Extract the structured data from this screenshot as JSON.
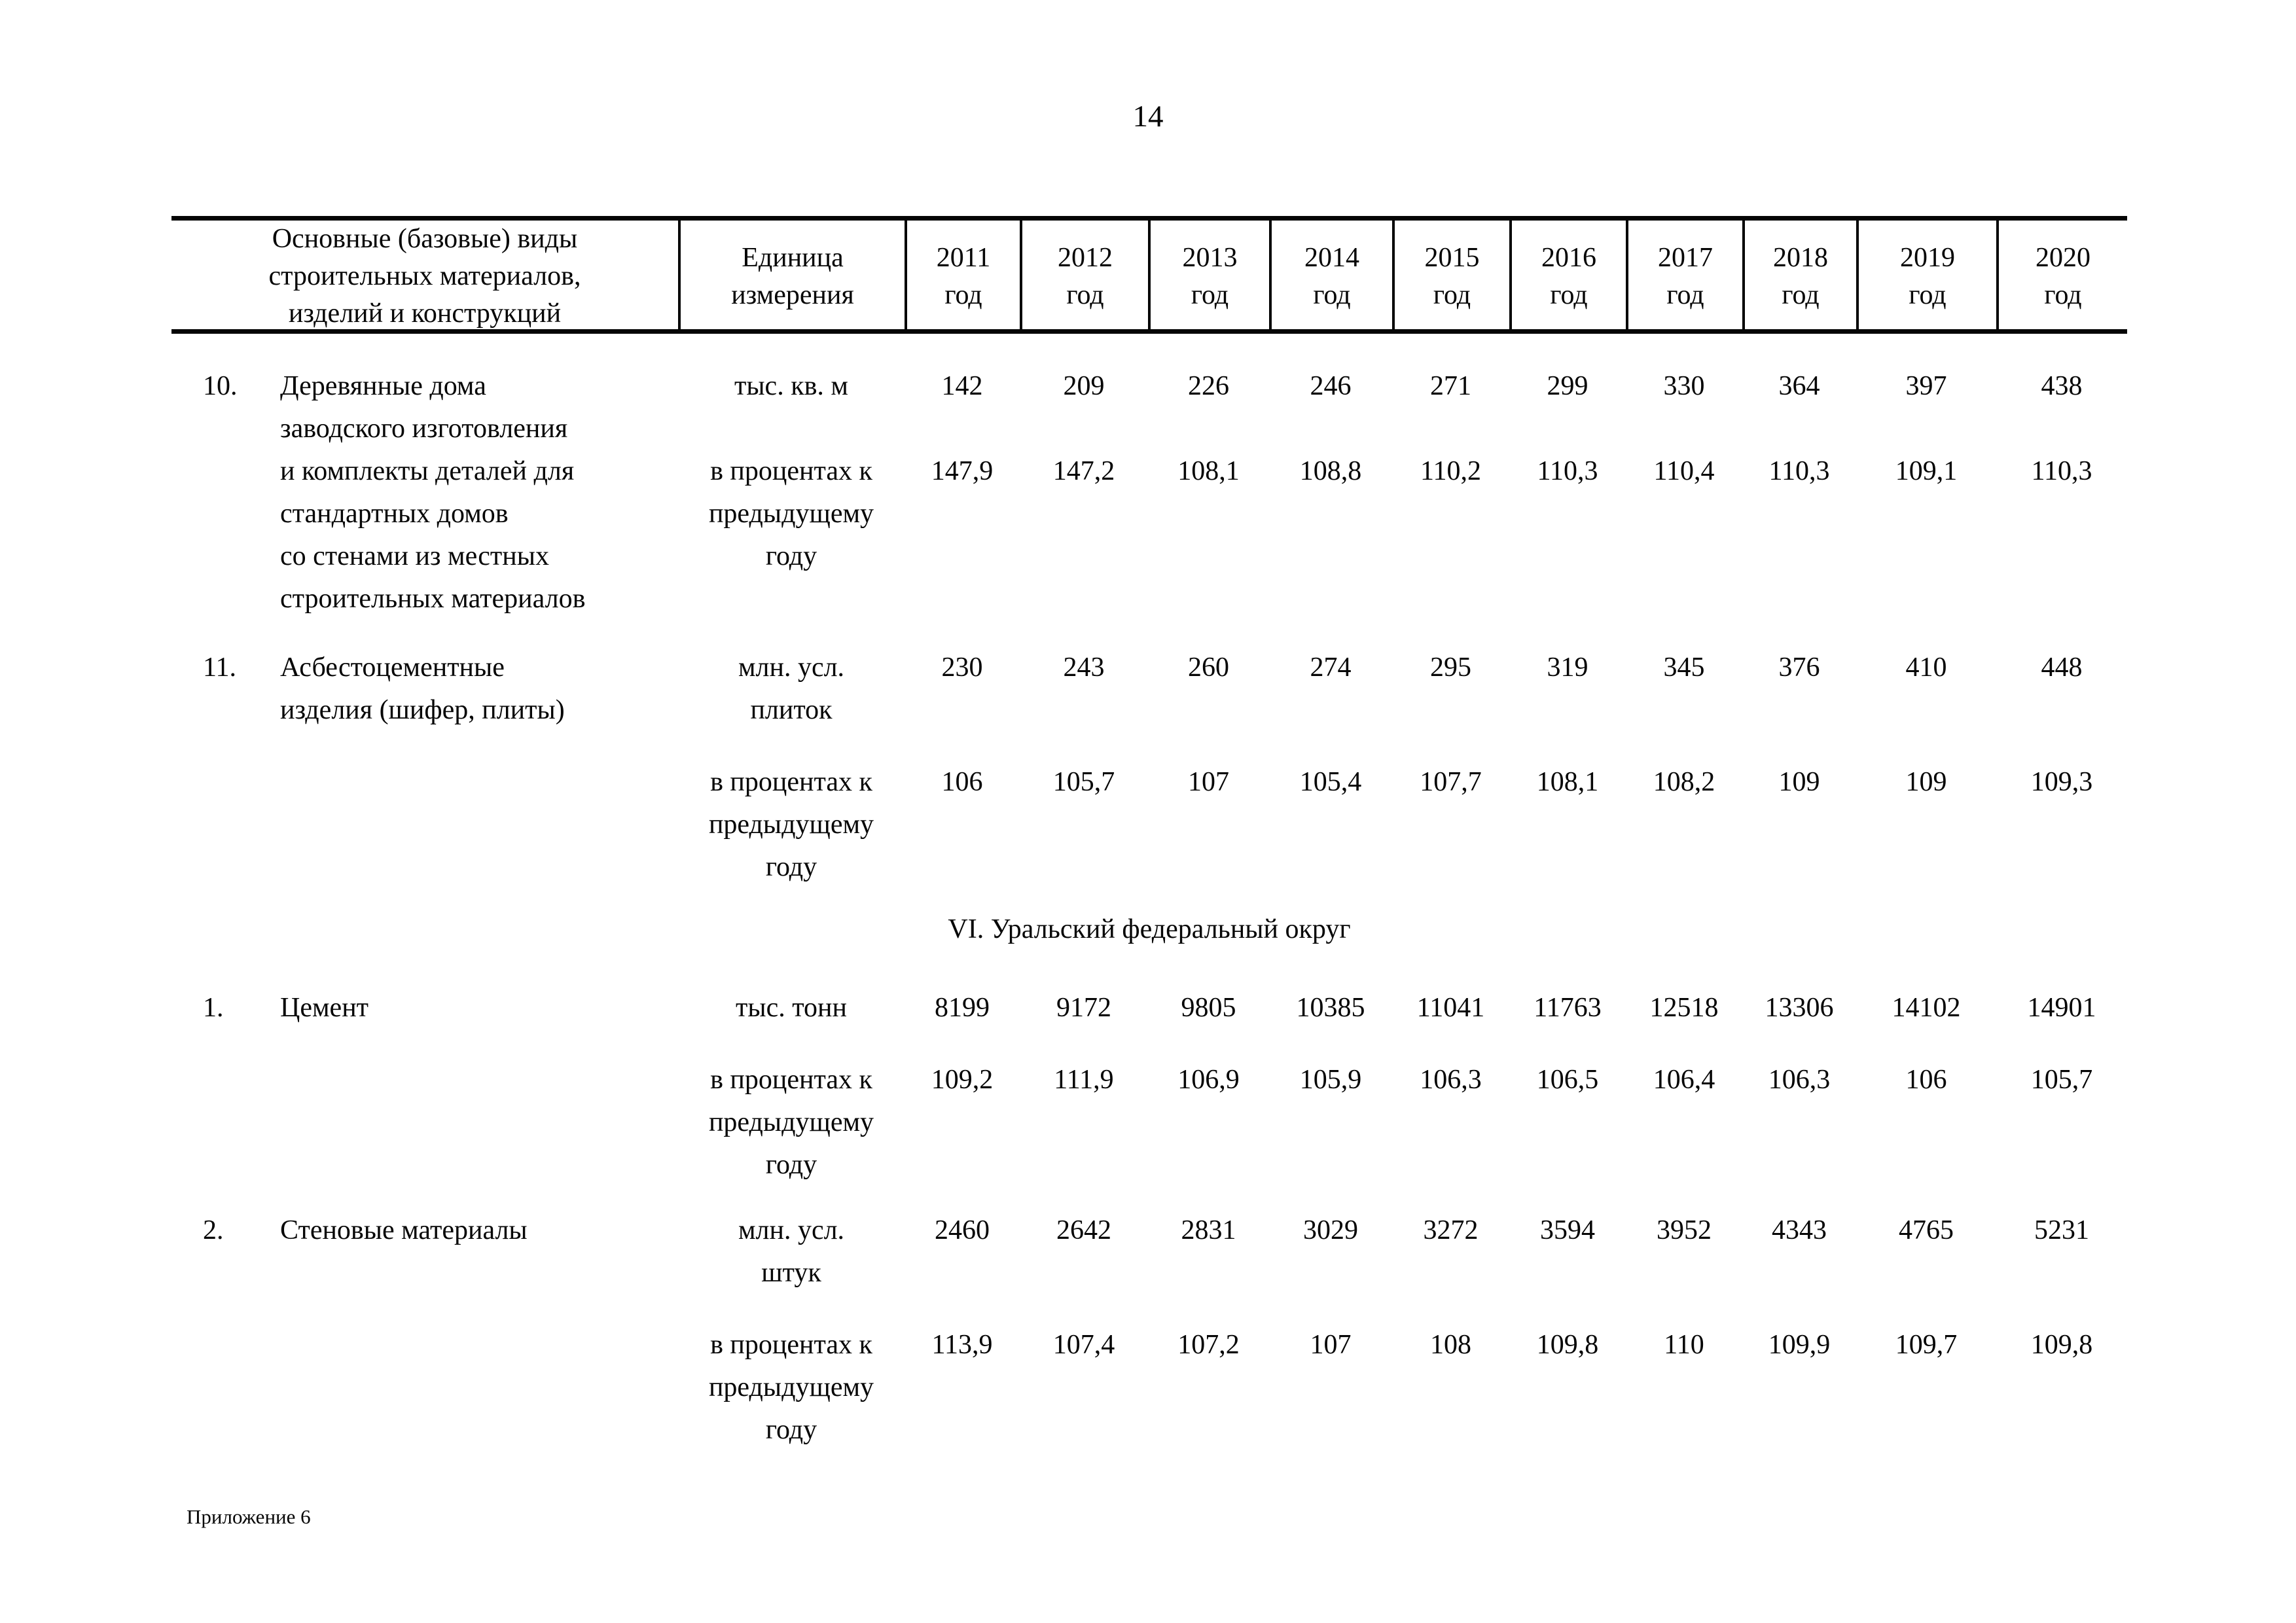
{
  "page": {
    "number": "14",
    "footer_note": "Приложение 6"
  },
  "table": {
    "header": {
      "materials_col_lines": [
        "Основные (базовые) виды",
        "строительных материалов,",
        "изделий и конструкций"
      ],
      "unit_col_lines": [
        "Единица",
        "измерения"
      ],
      "year_word": "год",
      "years": [
        "2011",
        "2012",
        "2013",
        "2014",
        "2015",
        "2016",
        "2017",
        "2018",
        "2019",
        "2020"
      ]
    },
    "sections": [
      {
        "rows": [
          {
            "num": "10.",
            "name_lines": [
              "Деревянные дома",
              "заводского изготовления",
              "и комплекты деталей для",
              "стандартных домов",
              "со стенами из местных",
              "строительных материалов"
            ],
            "measures": [
              {
                "unit_lines": [
                  "тыс. кв. м"
                ],
                "values": [
                  "142",
                  "209",
                  "226",
                  "246",
                  "271",
                  "299",
                  "330",
                  "364",
                  "397",
                  "438"
                ]
              },
              {
                "unit_lines": [
                  "в процентах к",
                  "предыдущему",
                  "году"
                ],
                "values": [
                  "147,9",
                  "147,2",
                  "108,1",
                  "108,8",
                  "110,2",
                  "110,3",
                  "110,4",
                  "110,3",
                  "109,1",
                  "110,3"
                ]
              }
            ]
          },
          {
            "num": "11.",
            "name_lines": [
              "Асбестоцементные",
              "изделия (шифер, плиты)"
            ],
            "measures": [
              {
                "unit_lines": [
                  "млн. усл.",
                  "плиток"
                ],
                "values": [
                  "230",
                  "243",
                  "260",
                  "274",
                  "295",
                  "319",
                  "345",
                  "376",
                  "410",
                  "448"
                ]
              },
              {
                "unit_lines": [
                  "в процентах к",
                  "предыдущему",
                  "году"
                ],
                "values": [
                  "106",
                  "105,7",
                  "107",
                  "105,4",
                  "107,7",
                  "108,1",
                  "108,2",
                  "109",
                  "109",
                  "109,3"
                ]
              }
            ]
          }
        ]
      },
      {
        "heading": "VI. Уральский федеральный округ",
        "rows": [
          {
            "num": "1.",
            "name_lines": [
              "Цемент"
            ],
            "measures": [
              {
                "unit_lines": [
                  "тыс. тонн"
                ],
                "values": [
                  "8199",
                  "9172",
                  "9805",
                  "10385",
                  "11041",
                  "11763",
                  "12518",
                  "13306",
                  "14102",
                  "14901"
                ]
              },
              {
                "unit_lines": [
                  "в процентах к",
                  "предыдущему",
                  "году"
                ],
                "values": [
                  "109,2",
                  "111,9",
                  "106,9",
                  "105,9",
                  "106,3",
                  "106,5",
                  "106,4",
                  "106,3",
                  "106",
                  "105,7"
                ]
              }
            ]
          },
          {
            "num": "2.",
            "name_lines": [
              "Стеновые материалы"
            ],
            "measures": [
              {
                "unit_lines": [
                  "млн. усл.",
                  "штук"
                ],
                "values": [
                  "2460",
                  "2642",
                  "2831",
                  "3029",
                  "3272",
                  "3594",
                  "3952",
                  "4343",
                  "4765",
                  "5231"
                ]
              },
              {
                "unit_lines": [
                  "в процентах к",
                  "предыдущему",
                  "году"
                ],
                "values": [
                  "113,9",
                  "107,4",
                  "107,2",
                  "107",
                  "108",
                  "109,8",
                  "110",
                  "109,9",
                  "109,7",
                  "109,8"
                ]
              }
            ]
          }
        ]
      }
    ]
  }
}
